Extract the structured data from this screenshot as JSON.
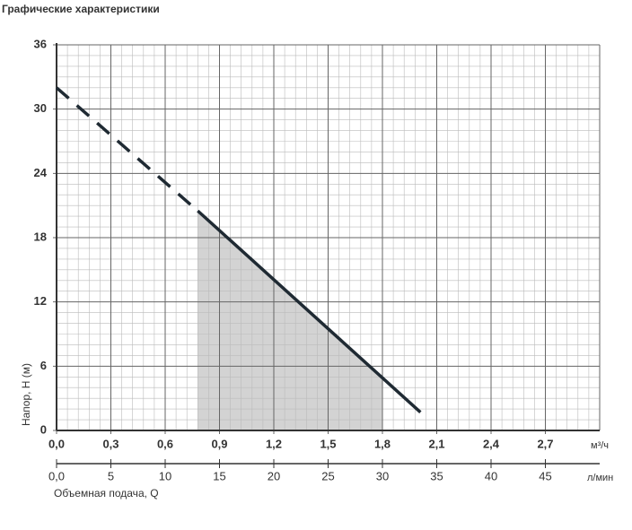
{
  "chart_data": {
    "type": "line",
    "title": "Графические характеристики",
    "y_label": "Напор, H (м)",
    "x_label": "Объемная подача, Q",
    "x_unit": "м³/ч",
    "x2_unit": "л/мин",
    "xlim": [
      0,
      3.0
    ],
    "xticks": [
      {
        "value": 0,
        "label": "0,0"
      },
      {
        "value": 0.3,
        "label": "0,3"
      },
      {
        "value": 0.6,
        "label": "0,6"
      },
      {
        "value": 0.9,
        "label": "0,9"
      },
      {
        "value": 1.2,
        "label": "1,2"
      },
      {
        "value": 1.5,
        "label": "1,5"
      },
      {
        "value": 1.8,
        "label": "1,8"
      },
      {
        "value": 2.1,
        "label": "2,1"
      },
      {
        "value": 2.4,
        "label": "2,4"
      },
      {
        "value": 2.7,
        "label": "2,7"
      }
    ],
    "x2lim": [
      0,
      50
    ],
    "x2ticks": [
      {
        "value": 0,
        "label": "0,0"
      },
      5,
      10,
      15,
      20,
      25,
      30,
      35,
      40,
      45
    ],
    "ylim": [
      0,
      36
    ],
    "yticks": [
      0,
      6,
      12,
      18,
      24,
      30,
      36
    ],
    "grid": true,
    "minor_divisions": {
      "x": 5,
      "y": 6
    },
    "series": [
      {
        "color": "#1f2a33",
        "style": "dashed",
        "x": [
          0,
          0.78
        ],
        "values": [
          32,
          20.5
        ]
      },
      {
        "color": "#1f2a33",
        "style": "solid",
        "x": [
          0.78,
          2.01
        ],
        "values": [
          20.5,
          1.7
        ]
      }
    ],
    "shade": {
      "x": [
        0.78,
        1.8
      ],
      "color": "#d3d3d3"
    }
  }
}
